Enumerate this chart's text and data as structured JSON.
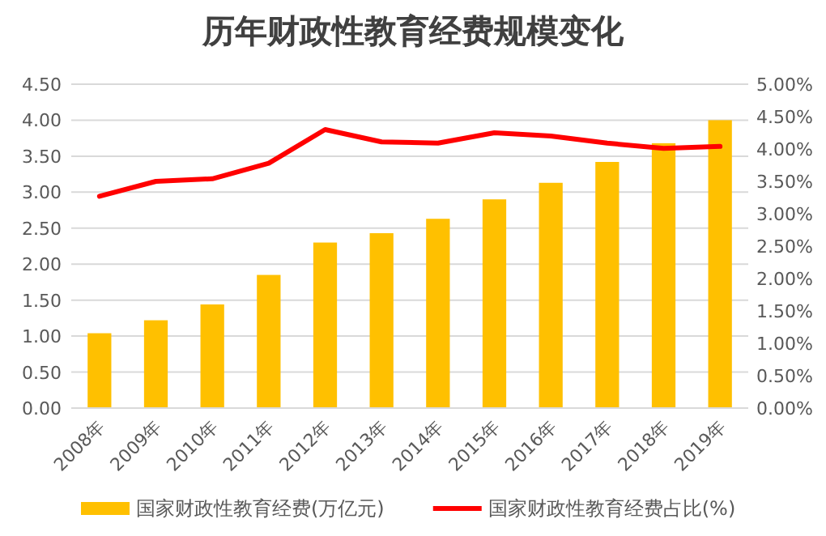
{
  "chart_data": {
    "type": "bar",
    "title": "历年财政性教育经费规模变化",
    "categories": [
      "2008年",
      "2009年",
      "2010年",
      "2011年",
      "2012年",
      "2013年",
      "2014年",
      "2015年",
      "2016年",
      "2017年",
      "2018年",
      "2019年"
    ],
    "series": [
      {
        "name": "国家财政性教育经费(万亿元)",
        "color": "#ffc000",
        "values": [
          1.04,
          1.22,
          1.44,
          1.85,
          2.3,
          2.43,
          2.63,
          2.9,
          3.13,
          3.42,
          3.68,
          4.0
        ]
      },
      {
        "name": "国家财政性教育经费占比(%)",
        "type": "line",
        "axis": "y2",
        "color": "#ff0000",
        "values": [
          3.27,
          3.5,
          3.54,
          3.78,
          4.3,
          4.11,
          4.09,
          4.25,
          4.2,
          4.09,
          4.01,
          4.04
        ]
      }
    ],
    "ylim": [
      0,
      4.5
    ],
    "yticks": [
      {
        "value": 0,
        "label": "0.00"
      },
      {
        "value": 0.5,
        "label": "0.50"
      },
      {
        "value": 1,
        "label": "1.00"
      },
      {
        "value": 1.5,
        "label": "1.50"
      },
      {
        "value": 2,
        "label": "2.00"
      },
      {
        "value": 2.5,
        "label": "2.50"
      },
      {
        "value": 3,
        "label": "3.00"
      },
      {
        "value": 3.5,
        "label": "3.50"
      },
      {
        "value": 4,
        "label": "4.00"
      },
      {
        "value": 4.5,
        "label": "4.50"
      }
    ],
    "y2lim": [
      0,
      5
    ],
    "y2ticks": [
      {
        "value": 0,
        "label": "0.00%"
      },
      {
        "value": 0.5,
        "label": "0.50%"
      },
      {
        "value": 1,
        "label": "1.00%"
      },
      {
        "value": 1.5,
        "label": "1.50%"
      },
      {
        "value": 2,
        "label": "2.00%"
      },
      {
        "value": 2.5,
        "label": "2.50%"
      },
      {
        "value": 3,
        "label": "3.00%"
      },
      {
        "value": 3.5,
        "label": "3.50%"
      },
      {
        "value": 4,
        "label": "4.00%"
      },
      {
        "value": 4.5,
        "label": "4.50%"
      },
      {
        "value": 5,
        "label": "5.00%"
      }
    ],
    "grid": "y",
    "legend": "bottom",
    "marker": "none"
  }
}
